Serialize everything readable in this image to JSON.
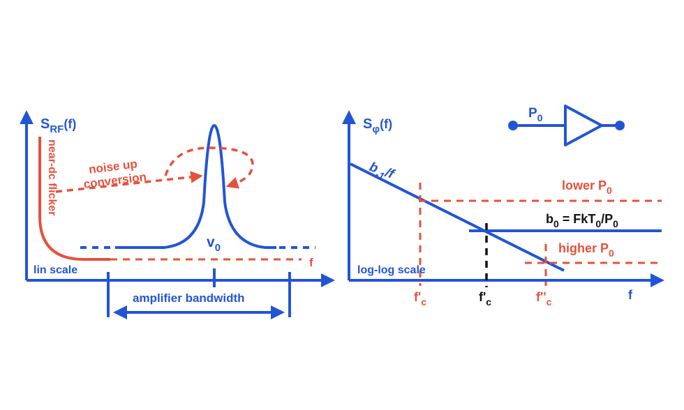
{
  "colors": {
    "blue": "#2255d6",
    "red": "#e8503a",
    "black": "#111111"
  },
  "left_panel": {
    "y_axis_label": "S",
    "y_axis_label_sub": "RF",
    "y_axis_label_suffix": "(f)",
    "x_axis_label": "f",
    "flicker_label": "near-dc flicker",
    "upconversion_line1": "noise up",
    "upconversion_line2": "conversion",
    "carrier_label": "v",
    "carrier_label_sub": "0",
    "scale_label": "lin scale",
    "bandwidth_label": "amplifier bandwidth"
  },
  "right_panel": {
    "y_axis_label": "S",
    "y_axis_label_sub": "φ",
    "y_axis_label_suffix": "(f)",
    "x_axis_label": "f",
    "slope_label_b": "b",
    "slope_label_sub": "-1",
    "slope_label_suffix": "/f",
    "lower_label": "lower P",
    "lower_label_sub": "0",
    "higher_label": "higher P",
    "higher_label_sub": "0",
    "floor_b": "b",
    "floor_b_sub": "0",
    "floor_eq": " = FkT",
    "floor_t_sub": "0",
    "floor_p": "/P",
    "floor_p_sub": "0",
    "scale_label": "log-log scale",
    "fc_low": "f'",
    "fc_low_sub": "c",
    "fc_mid": "f'",
    "fc_mid_sub": "c",
    "fc_high": "f''",
    "fc_high_sub": "c",
    "amp_label": "P",
    "amp_label_sub": "0"
  }
}
